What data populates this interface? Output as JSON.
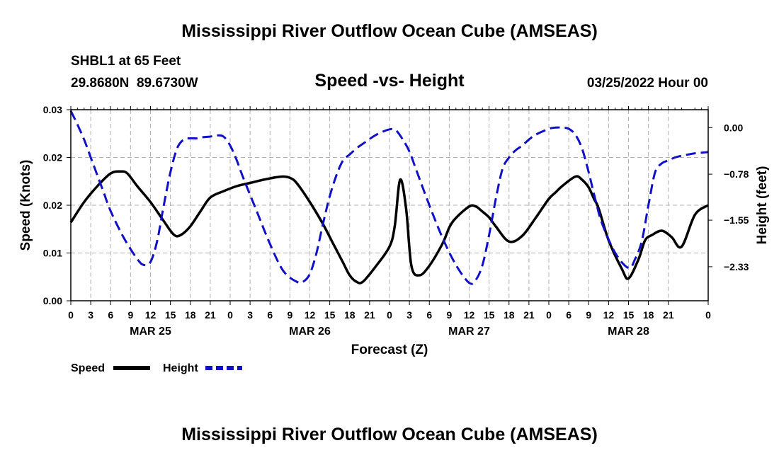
{
  "page": {
    "title_top": "Mississippi River Outflow Ocean Cube (AMSEAS)",
    "title_bottom": "Mississippi River Outflow Ocean Cube (AMSEAS)"
  },
  "header": {
    "station": "SHBL1 at 65 Feet",
    "coords": "29.8680N  89.6730W",
    "datetime": "03/25/2022 Hour 00"
  },
  "colors": {
    "speed": "#000000",
    "height": "#1010c8",
    "grid": "#b0b0b0"
  },
  "chart_data": {
    "type": "line",
    "title": "Speed -vs- Height",
    "xlabel": "Forecast (Z)",
    "ylabel_left": "Speed (Knots)",
    "ylabel_right": "Height (feet)",
    "x_range_hours": [
      0,
      96
    ],
    "y_left_range": [
      0,
      0.03
    ],
    "y_right_range": [
      -2.9,
      0.3
    ],
    "x_ticks": [
      {
        "h": 0,
        "label": "0"
      },
      {
        "h": 3,
        "label": "3"
      },
      {
        "h": 6,
        "label": "6"
      },
      {
        "h": 9,
        "label": "9"
      },
      {
        "h": 12,
        "label": "12"
      },
      {
        "h": 15,
        "label": "15"
      },
      {
        "h": 18,
        "label": "18"
      },
      {
        "h": 21,
        "label": "21"
      },
      {
        "h": 24,
        "label": "0"
      },
      {
        "h": 27,
        "label": "3"
      },
      {
        "h": 30,
        "label": "6"
      },
      {
        "h": 33,
        "label": "9"
      },
      {
        "h": 36,
        "label": "12"
      },
      {
        "h": 39,
        "label": "15"
      },
      {
        "h": 42,
        "label": "18"
      },
      {
        "h": 45,
        "label": "21"
      },
      {
        "h": 48,
        "label": "0"
      },
      {
        "h": 51,
        "label": "3"
      },
      {
        "h": 54,
        "label": "6"
      },
      {
        "h": 57,
        "label": "9"
      },
      {
        "h": 60,
        "label": "12"
      },
      {
        "h": 63,
        "label": "15"
      },
      {
        "h": 66,
        "label": "18"
      },
      {
        "h": 69,
        "label": "21"
      },
      {
        "h": 72,
        "label": "0"
      },
      {
        "h": 75,
        "label": "6"
      },
      {
        "h": 78,
        "label": "9"
      },
      {
        "h": 81,
        "label": "12"
      },
      {
        "h": 84,
        "label": "15"
      },
      {
        "h": 87,
        "label": "18"
      },
      {
        "h": 90,
        "label": "21"
      },
      {
        "h": 96,
        "label": "0"
      }
    ],
    "x_ticks_note": "label sequence as printed",
    "date_labels": [
      {
        "h": 12,
        "label": "MAR 25"
      },
      {
        "h": 36,
        "label": "MAR 26"
      },
      {
        "h": 60,
        "label": "MAR 27"
      },
      {
        "h": 84,
        "label": "MAR 28"
      }
    ],
    "y_left_ticks": [
      {
        "v": 0.0,
        "label": "0.00"
      },
      {
        "v": 0.0075,
        "label": "0.01"
      },
      {
        "v": 0.015,
        "label": "0.02"
      },
      {
        "v": 0.0225,
        "label": "0.02"
      },
      {
        "v": 0.03,
        "label": "0.03"
      }
    ],
    "y_right_ticks": [
      {
        "v": 0.0,
        "label": "0.00"
      },
      {
        "v": -0.78,
        "label": "-0.78"
      },
      {
        "v": -1.55,
        "label": "-1.55"
      },
      {
        "v": -2.33,
        "label": "-2.33"
      }
    ],
    "series": [
      {
        "name": "Speed",
        "axis": "left",
        "style": "solid",
        "x": [
          0,
          2,
          4,
          6,
          7.5,
          8.5,
          10,
          12,
          14,
          15.5,
          16.5,
          18,
          19.5,
          21,
          23,
          25,
          27,
          29,
          31,
          32,
          33,
          34,
          36,
          38,
          39.5,
          41,
          42,
          43,
          44,
          46,
          48,
          48.8,
          49.6,
          50.5,
          51.3,
          52.5,
          54,
          56,
          57,
          58,
          60,
          61,
          62,
          63,
          64,
          66,
          68,
          70,
          72,
          73,
          74,
          76,
          77,
          78,
          78.8,
          79.5,
          81,
          83,
          84,
          85.5,
          86.5,
          87.5,
          89,
          90.5,
          92,
          94,
          96
        ],
        "values": [
          0.0123,
          0.0155,
          0.018,
          0.02,
          0.0203,
          0.02,
          0.018,
          0.0155,
          0.0125,
          0.0104,
          0.0103,
          0.0117,
          0.014,
          0.0162,
          0.0172,
          0.018,
          0.0185,
          0.019,
          0.0194,
          0.0195,
          0.0193,
          0.0185,
          0.0155,
          0.012,
          0.009,
          0.006,
          0.004,
          0.003,
          0.003,
          0.0055,
          0.0085,
          0.0118,
          0.019,
          0.0145,
          0.0055,
          0.004,
          0.0055,
          0.009,
          0.0115,
          0.013,
          0.0148,
          0.0148,
          0.014,
          0.0131,
          0.0117,
          0.0093,
          0.0102,
          0.013,
          0.016,
          0.017,
          0.018,
          0.0195,
          0.019,
          0.0178,
          0.016,
          0.0145,
          0.0095,
          0.005,
          0.0035,
          0.0065,
          0.0095,
          0.0103,
          0.011,
          0.01,
          0.0085,
          0.0135,
          0.015
        ]
      },
      {
        "name": "Height",
        "axis": "right",
        "style": "dashed",
        "x": [
          0,
          1,
          2,
          3,
          4,
          5,
          6,
          8,
          10,
          11,
          12,
          13,
          14,
          15,
          16,
          17,
          18,
          19,
          20,
          21,
          22,
          23,
          24,
          25,
          26,
          28,
          30,
          32,
          34,
          35,
          36,
          37,
          38,
          39,
          40,
          41,
          42,
          43,
          44,
          46,
          48,
          49,
          50,
          51,
          52,
          54,
          56,
          58,
          60,
          61,
          62,
          63,
          64,
          65,
          66,
          67,
          68,
          69,
          70,
          72,
          73,
          74,
          75,
          76,
          77,
          78,
          79,
          80,
          82,
          84,
          85,
          86,
          87,
          88,
          89,
          90,
          91,
          92,
          93,
          94,
          95,
          96
        ],
        "values": [
          0.28,
          0.05,
          -0.2,
          -0.5,
          -0.8,
          -1.1,
          -1.4,
          -1.85,
          -2.2,
          -2.3,
          -2.25,
          -1.9,
          -1.3,
          -0.75,
          -0.35,
          -0.2,
          -0.18,
          -0.18,
          -0.16,
          -0.15,
          -0.13,
          -0.15,
          -0.3,
          -0.55,
          -0.85,
          -1.4,
          -1.95,
          -2.4,
          -2.58,
          -2.58,
          -2.45,
          -2.1,
          -1.6,
          -1.15,
          -0.8,
          -0.55,
          -0.45,
          -0.35,
          -0.27,
          -0.12,
          -0.03,
          -0.05,
          -0.2,
          -0.4,
          -0.7,
          -1.3,
          -1.85,
          -2.3,
          -2.6,
          -2.55,
          -2.3,
          -1.8,
          -1.2,
          -0.7,
          -0.5,
          -0.38,
          -0.3,
          -0.2,
          -0.12,
          -0.02,
          0.0,
          0.0,
          -0.02,
          -0.12,
          -0.35,
          -0.75,
          -1.2,
          -1.6,
          -2.1,
          -2.35,
          -2.2,
          -1.9,
          -1.3,
          -0.75,
          -0.6,
          -0.55,
          -0.5,
          -0.47,
          -0.45,
          -0.43,
          -0.42,
          -0.41
        ]
      }
    ],
    "legend": {
      "position": "bottom-left",
      "entries": [
        {
          "label": "Speed",
          "series": "Speed"
        },
        {
          "label": "Height",
          "series": "Height"
        }
      ]
    }
  }
}
